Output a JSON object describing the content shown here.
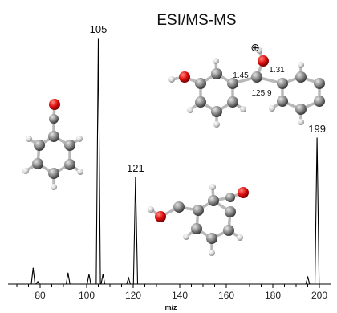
{
  "chart_data": {
    "type": "line",
    "title": "ESI/MS-MS",
    "xlabel": "m/z",
    "ylabel": "",
    "xlim": [
      67,
      204
    ],
    "ylim": [
      0,
      100
    ],
    "ticks": [
      "80",
      "100",
      "120",
      "140",
      "160",
      "180",
      "200"
    ],
    "peaks": [
      {
        "x": 77,
        "y": 6.5
      },
      {
        "x": 79,
        "y": 1.0
      },
      {
        "x": 92,
        "y": 4.5
      },
      {
        "x": 101,
        "y": 4.0
      },
      {
        "x": 105,
        "y": 100,
        "label": "105"
      },
      {
        "x": 107,
        "y": 4.0
      },
      {
        "x": 118,
        "y": 2.5
      },
      {
        "x": 121,
        "y": 43.5,
        "label": "121"
      },
      {
        "x": 195,
        "y": 3.0
      },
      {
        "x": 199,
        "y": 59.5,
        "label": "199"
      }
    ],
    "structure_annotations": {
      "charge": "⊕",
      "bond_1": "1.45",
      "bond_2": "1.31",
      "angle": "125.9"
    }
  }
}
